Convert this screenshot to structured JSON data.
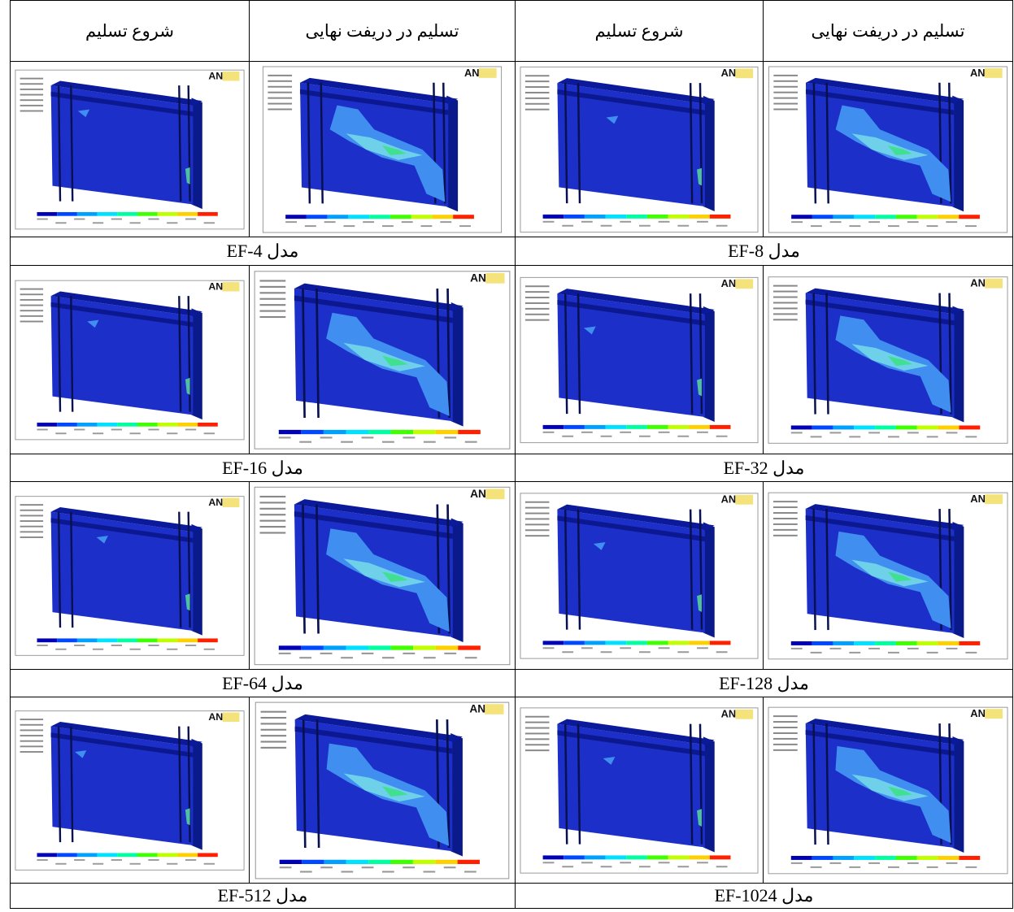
{
  "header": [
    "شروع تسلیم",
    "تسلیم در دریفت نهایی",
    "شروع تسلیم",
    "تسلیم در دریفت نهایی"
  ],
  "rows": [
    {
      "left": "مدل EF-4",
      "right": "مدل EF-8"
    },
    {
      "left": "مدل EF-16",
      "right": "مدل EF-32"
    },
    {
      "left": "مدل EF-64",
      "right": "مدل EF-128"
    },
    {
      "left": "مدل EF-512",
      "right": "مدل EF-1024"
    }
  ],
  "plot_logo": "AN"
}
